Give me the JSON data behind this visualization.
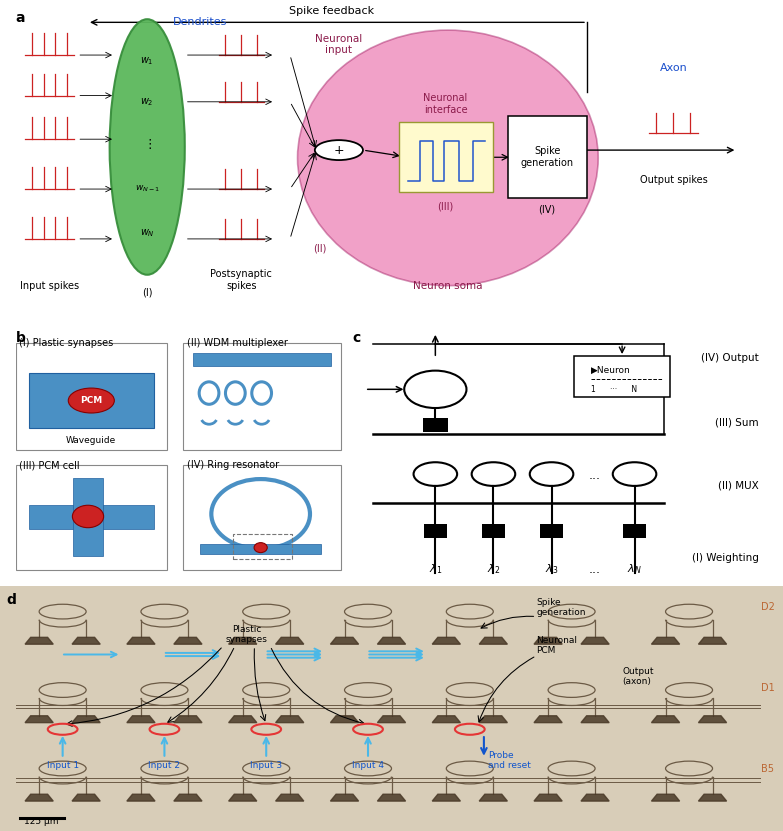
{
  "fig_width": 7.83,
  "fig_height": 8.31,
  "bg_color": "#ffffff",
  "panel_a": {
    "label": "a",
    "spike_color": "#cc2222",
    "green_color": "#5cb85c",
    "green_edge": "#388e3c",
    "pink_color": "#d44090",
    "blue_label_color": "#1a4fcc",
    "dark_pink": "#8b1a4a"
  },
  "panel_b": {
    "label": "b",
    "blue_color": "#4a90c4",
    "red_color": "#cc2222"
  },
  "panel_c": {
    "label": "c"
  },
  "panel_d": {
    "label": "d",
    "bg_color": "#d8cdb8",
    "waveguide_color": "#6b5a45",
    "grating_color": "#4a3a28",
    "blue_color": "#4ab8e8",
    "red_color": "#e53535",
    "row_label_color": "#bb6633"
  }
}
